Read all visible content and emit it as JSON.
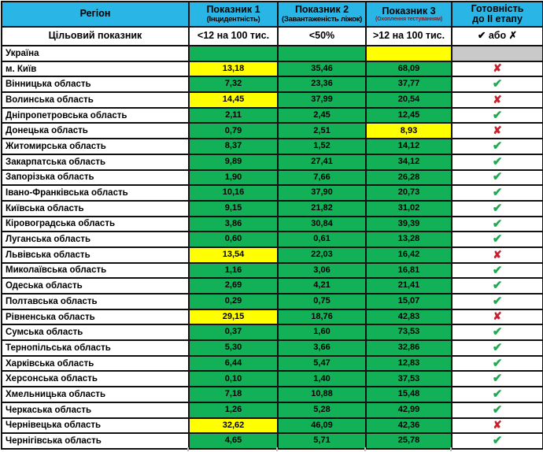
{
  "colors": {
    "header_bg": "#29B6E6",
    "pass_cell": "#12B158",
    "fail_cell": "#FFFF00",
    "na_cell": "#C9C9C9",
    "check": "#1FA94F",
    "cross": "#C5212E",
    "subtitle3_text": "#8B1A1A"
  },
  "header": {
    "region": "Регіон",
    "col1_title": "Показник 1",
    "col1_sub": "(Інцидентність)",
    "col2_title": "Показник 2",
    "col2_sub": "(Завантаженість ліжок)",
    "col3_title": "Показник 3",
    "col3_sub": "(Охоплення тестуванням)",
    "ready_line1": "Готовність",
    "ready_line2": "до ІІ етапу"
  },
  "target": {
    "label": "Цільовий показник",
    "p1": "<12 на 100 тис.",
    "p2": "<50%",
    "p3": ">12 на 100 тис.",
    "ready": "✔ або ✗"
  },
  "marks": {
    "check": "✔",
    "cross": "✘",
    "gray": ""
  },
  "rows": [
    {
      "region": "Україна",
      "p1": "",
      "p1_bg": "green",
      "p2": "",
      "p2_bg": "green",
      "p3": "",
      "p3_bg": "yellow",
      "mark": "gray"
    },
    {
      "region": "м. Київ",
      "p1": "13,18",
      "p1_bg": "yellow",
      "p2": "35,46",
      "p2_bg": "green",
      "p3": "68,09",
      "p3_bg": "green",
      "mark": "cross"
    },
    {
      "region": "Вінницька область",
      "p1": "7,32",
      "p1_bg": "green",
      "p2": "23,36",
      "p2_bg": "green",
      "p3": "37,77",
      "p3_bg": "green",
      "mark": "check"
    },
    {
      "region": "Волинська область",
      "p1": "14,45",
      "p1_bg": "yellow",
      "p2": "37,99",
      "p2_bg": "green",
      "p3": "20,54",
      "p3_bg": "green",
      "mark": "cross"
    },
    {
      "region": "Дніпропетровська область",
      "p1": "2,11",
      "p1_bg": "green",
      "p2": "2,45",
      "p2_bg": "green",
      "p3": "12,45",
      "p3_bg": "green",
      "mark": "check"
    },
    {
      "region": "Донецька область",
      "p1": "0,79",
      "p1_bg": "green",
      "p2": "2,51",
      "p2_bg": "green",
      "p3": "8,93",
      "p3_bg": "yellow",
      "mark": "cross"
    },
    {
      "region": "Житомирська область",
      "p1": "8,37",
      "p1_bg": "green",
      "p2": "1,52",
      "p2_bg": "green",
      "p3": "14,12",
      "p3_bg": "green",
      "mark": "check"
    },
    {
      "region": "Закарпатська область",
      "p1": "9,89",
      "p1_bg": "green",
      "p2": "27,41",
      "p2_bg": "green",
      "p3": "34,12",
      "p3_bg": "green",
      "mark": "check"
    },
    {
      "region": "Запорізька область",
      "p1": "1,90",
      "p1_bg": "green",
      "p2": "7,66",
      "p2_bg": "green",
      "p3": "26,28",
      "p3_bg": "green",
      "mark": "check"
    },
    {
      "region": "Івано-Франківська область",
      "p1": "10,16",
      "p1_bg": "green",
      "p2": "37,90",
      "p2_bg": "green",
      "p3": "20,73",
      "p3_bg": "green",
      "mark": "check"
    },
    {
      "region": "Київська область",
      "p1": "9,15",
      "p1_bg": "green",
      "p2": "21,82",
      "p2_bg": "green",
      "p3": "31,02",
      "p3_bg": "green",
      "mark": "check"
    },
    {
      "region": "Кіровоградська область",
      "p1": "3,86",
      "p1_bg": "green",
      "p2": "30,84",
      "p2_bg": "green",
      "p3": "39,39",
      "p3_bg": "green",
      "mark": "check"
    },
    {
      "region": "Луганська область",
      "p1": "0,60",
      "p1_bg": "green",
      "p2": "0,61",
      "p2_bg": "green",
      "p3": "13,28",
      "p3_bg": "green",
      "mark": "check"
    },
    {
      "region": "Львівська область",
      "p1": "13,54",
      "p1_bg": "yellow",
      "p2": "22,03",
      "p2_bg": "green",
      "p3": "16,42",
      "p3_bg": "green",
      "mark": "cross"
    },
    {
      "region": "Миколаївська область",
      "p1": "1,16",
      "p1_bg": "green",
      "p2": "3,06",
      "p2_bg": "green",
      "p3": "16,81",
      "p3_bg": "green",
      "mark": "check"
    },
    {
      "region": "Одеська область",
      "p1": "2,69",
      "p1_bg": "green",
      "p2": "4,21",
      "p2_bg": "green",
      "p3": "21,41",
      "p3_bg": "green",
      "mark": "check"
    },
    {
      "region": "Полтавська область",
      "p1": "0,29",
      "p1_bg": "green",
      "p2": "0,75",
      "p2_bg": "green",
      "p3": "15,07",
      "p3_bg": "green",
      "mark": "check"
    },
    {
      "region": "Рівненська область",
      "p1": "29,15",
      "p1_bg": "yellow",
      "p2": "18,76",
      "p2_bg": "green",
      "p3": "42,83",
      "p3_bg": "green",
      "mark": "cross"
    },
    {
      "region": "Сумська область",
      "p1": "0,37",
      "p1_bg": "green",
      "p2": "1,60",
      "p2_bg": "green",
      "p3": "73,53",
      "p3_bg": "green",
      "mark": "check"
    },
    {
      "region": "Тернопільська область",
      "p1": "5,30",
      "p1_bg": "green",
      "p2": "3,66",
      "p2_bg": "green",
      "p3": "32,86",
      "p3_bg": "green",
      "mark": "check"
    },
    {
      "region": "Харківська область",
      "p1": "6,44",
      "p1_bg": "green",
      "p2": "5,47",
      "p2_bg": "green",
      "p3": "12,83",
      "p3_bg": "green",
      "mark": "check"
    },
    {
      "region": "Херсонська область",
      "p1": "0,10",
      "p1_bg": "green",
      "p2": "1,40",
      "p2_bg": "green",
      "p3": "37,53",
      "p3_bg": "green",
      "mark": "check"
    },
    {
      "region": "Хмельницька область",
      "p1": "7,18",
      "p1_bg": "green",
      "p2": "10,88",
      "p2_bg": "green",
      "p3": "15,48",
      "p3_bg": "green",
      "mark": "check"
    },
    {
      "region": "Черкаська область",
      "p1": "1,26",
      "p1_bg": "green",
      "p2": "5,28",
      "p2_bg": "green",
      "p3": "42,99",
      "p3_bg": "green",
      "mark": "check"
    },
    {
      "region": "Чернівецька область",
      "p1": "32,62",
      "p1_bg": "yellow",
      "p2": "46,09",
      "p2_bg": "green",
      "p3": "42,36",
      "p3_bg": "green",
      "mark": "cross"
    },
    {
      "region": "Чернігівська область",
      "p1": "4,65",
      "p1_bg": "green",
      "p2": "5,71",
      "p2_bg": "green",
      "p3": "25,78",
      "p3_bg": "green",
      "mark": "check"
    }
  ]
}
